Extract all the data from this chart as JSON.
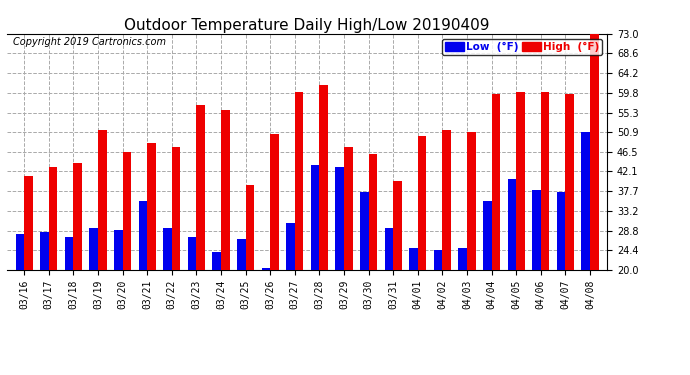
{
  "title": "Outdoor Temperature Daily High/Low 20190409",
  "copyright": "Copyright 2019 Cartronics.com",
  "legend_low": "Low  (°F)",
  "legend_high": "High  (°F)",
  "dates": [
    "03/16",
    "03/17",
    "03/18",
    "03/19",
    "03/20",
    "03/21",
    "03/22",
    "03/23",
    "03/24",
    "03/25",
    "03/26",
    "03/27",
    "03/28",
    "03/29",
    "03/30",
    "03/31",
    "04/01",
    "04/02",
    "04/03",
    "04/04",
    "04/05",
    "04/06",
    "04/07",
    "04/08"
  ],
  "highs": [
    41.0,
    43.0,
    44.0,
    51.5,
    46.5,
    48.5,
    47.5,
    57.0,
    56.0,
    39.0,
    50.5,
    60.0,
    61.5,
    47.5,
    46.0,
    40.0,
    50.0,
    51.5,
    51.0,
    59.5,
    60.0,
    60.0,
    59.5,
    73.0
  ],
  "lows": [
    28.0,
    28.5,
    27.5,
    29.5,
    29.0,
    35.5,
    29.5,
    27.5,
    24.0,
    27.0,
    20.5,
    30.5,
    43.5,
    43.0,
    37.5,
    29.5,
    25.0,
    24.5,
    25.0,
    35.5,
    40.5,
    38.0,
    37.5,
    51.0
  ],
  "ylim": [
    20.0,
    73.0
  ],
  "yticks": [
    20.0,
    24.4,
    28.8,
    33.2,
    37.7,
    42.1,
    46.5,
    50.9,
    55.3,
    59.8,
    64.2,
    68.6,
    73.0
  ],
  "bar_width": 0.35,
  "low_color": "#0000ee",
  "high_color": "#ee0000",
  "background_color": "#ffffff",
  "grid_color": "#aaaaaa",
  "title_fontsize": 11,
  "copyright_fontsize": 7,
  "tick_fontsize": 7,
  "legend_fontsize": 7.5
}
